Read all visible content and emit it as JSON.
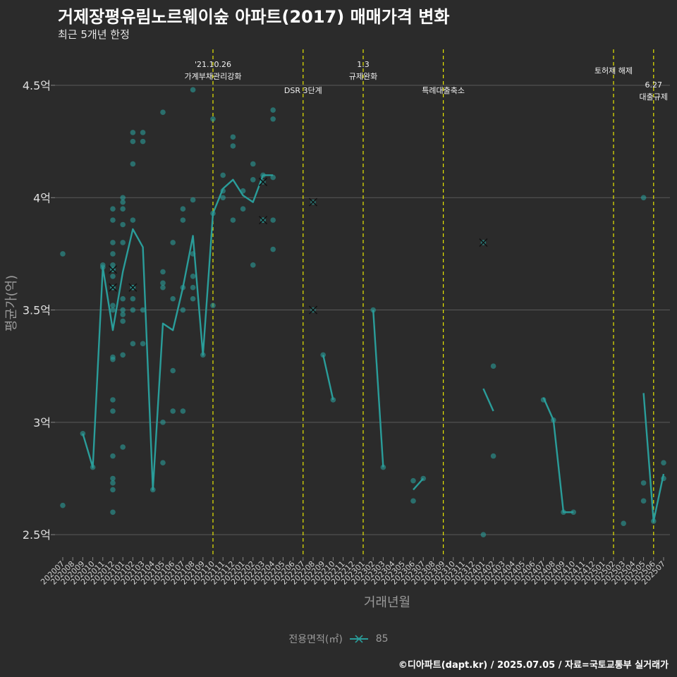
{
  "title": "거제장평유림노르웨이숲 아파트(2017) 매매가격 변화",
  "subtitle": "최근 5개년 한정",
  "caption": "©디아파트(dapt.kr) / 2025.07.05 / 자료=국토교통부 실거래가",
  "colors": {
    "background": "#2b2b2b",
    "series": "#2a9d9a",
    "event_line": "#e8e800",
    "grid": "#5a5a5a"
  },
  "legend": {
    "title": "전용면적(㎡)",
    "entry": "85"
  },
  "chart_data": {
    "type": "line",
    "title": "거제장평유림노르웨이숲 아파트(2017) 매매가격 변화",
    "xlabel": "거래년월",
    "ylabel": "평균가(억)",
    "ylim": [
      2.4,
      4.66
    ],
    "y_ticks": [
      2.5,
      3.0,
      3.5,
      4.0,
      4.5
    ],
    "y_tick_labels": [
      "2.5억",
      "3억",
      "3.5억",
      "4억",
      "4.5억"
    ],
    "categories": [
      "202007",
      "202008",
      "202009",
      "202010",
      "202011",
      "202012",
      "202101",
      "202102",
      "202103",
      "202104",
      "202105",
      "202106",
      "202107",
      "202108",
      "202109",
      "202110",
      "202111",
      "202112",
      "202201",
      "202202",
      "202203",
      "202204",
      "202205",
      "202206",
      "202207",
      "202208",
      "202209",
      "202210",
      "202211",
      "202212",
      "202301",
      "202302",
      "202303",
      "202304",
      "202305",
      "202306",
      "202307",
      "202308",
      "202309",
      "202310",
      "202311",
      "202312",
      "202401",
      "202402",
      "202403",
      "202404",
      "202405",
      "202406",
      "202407",
      "202408",
      "202409",
      "202410",
      "202411",
      "202412",
      "202501",
      "202502",
      "202503",
      "202504",
      "202505",
      "202506",
      "202507"
    ],
    "series": [
      {
        "name": "85",
        "line": [
          [
            [
              2,
              2.95
            ],
            [
              3,
              2.8
            ],
            [
              4,
              3.69
            ],
            [
              5,
              3.41
            ],
            [
              6,
              3.67
            ],
            [
              7,
              3.86
            ],
            [
              8,
              3.78
            ],
            [
              9,
              2.7
            ],
            [
              10,
              3.44
            ],
            [
              11,
              3.41
            ],
            [
              12,
              3.6
            ],
            [
              13,
              3.83
            ],
            [
              14,
              3.3
            ],
            [
              15,
              3.93
            ],
            [
              16,
              4.04
            ],
            [
              17,
              4.08
            ],
            [
              18,
              4.01
            ],
            [
              19,
              3.98
            ],
            [
              20,
              4.1
            ],
            [
              21,
              4.1
            ]
          ],
          [
            [
              26,
              3.3
            ],
            [
              27,
              3.1
            ]
          ],
          [
            [
              31,
              3.5
            ],
            [
              32,
              2.8
            ]
          ],
          [
            [
              35,
              2.7
            ],
            [
              36,
              2.75
            ]
          ],
          [
            [
              42,
              3.15
            ],
            [
              43,
              3.05
            ]
          ],
          [
            [
              48,
              3.11
            ],
            [
              49,
              3.01
            ],
            [
              50,
              2.6
            ],
            [
              51,
              2.6
            ]
          ],
          [
            [
              58,
              3.13
            ],
            [
              59,
              2.56
            ],
            [
              60,
              2.77
            ]
          ]
        ],
        "points": [
          [
            0,
            2.63
          ],
          [
            0,
            3.75
          ],
          [
            2,
            2.95
          ],
          [
            3,
            2.8
          ],
          [
            4,
            3.69
          ],
          [
            4,
            3.7
          ],
          [
            5,
            3.95
          ],
          [
            5,
            3.9
          ],
          [
            5,
            3.8
          ],
          [
            5,
            3.75
          ],
          [
            5,
            3.7
          ],
          [
            5,
            3.65
          ],
          [
            5,
            3.52
          ],
          [
            5,
            3.5
          ],
          [
            5,
            3.29
          ],
          [
            5,
            3.28
          ],
          [
            5,
            3.1
          ],
          [
            5,
            3.05
          ],
          [
            5,
            2.85
          ],
          [
            5,
            2.75
          ],
          [
            5,
            2.73
          ],
          [
            5,
            2.7
          ],
          [
            5,
            2.6
          ],
          [
            5,
            3.6
          ],
          [
            5,
            3.68
          ],
          [
            6,
            4.0
          ],
          [
            6,
            3.98
          ],
          [
            6,
            3.95
          ],
          [
            6,
            3.88
          ],
          [
            6,
            3.8
          ],
          [
            6,
            3.55
          ],
          [
            6,
            3.5
          ],
          [
            6,
            3.45
          ],
          [
            6,
            3.3
          ],
          [
            6,
            2.89
          ],
          [
            6,
            3.48
          ],
          [
            7,
            4.29
          ],
          [
            7,
            4.25
          ],
          [
            7,
            4.15
          ],
          [
            7,
            3.9
          ],
          [
            7,
            3.6
          ],
          [
            7,
            3.55
          ],
          [
            7,
            3.5
          ],
          [
            7,
            3.35
          ],
          [
            8,
            4.29
          ],
          [
            8,
            4.25
          ],
          [
            8,
            3.5
          ],
          [
            8,
            3.35
          ],
          [
            9,
            2.7
          ],
          [
            10,
            4.38
          ],
          [
            10,
            3.67
          ],
          [
            10,
            3.62
          ],
          [
            10,
            3.6
          ],
          [
            10,
            3.0
          ],
          [
            10,
            2.82
          ],
          [
            11,
            3.8
          ],
          [
            11,
            3.55
          ],
          [
            11,
            3.23
          ],
          [
            11,
            3.05
          ],
          [
            12,
            3.95
          ],
          [
            12,
            3.9
          ],
          [
            12,
            3.6
          ],
          [
            12,
            3.5
          ],
          [
            12,
            3.05
          ],
          [
            13,
            4.48
          ],
          [
            13,
            3.99
          ],
          [
            13,
            3.75
          ],
          [
            13,
            3.65
          ],
          [
            13,
            3.6
          ],
          [
            13,
            3.55
          ],
          [
            14,
            3.3
          ],
          [
            15,
            4.35
          ],
          [
            15,
            3.52
          ],
          [
            15,
            3.93
          ],
          [
            16,
            4.1
          ],
          [
            16,
            4.03
          ],
          [
            16,
            4.0
          ],
          [
            17,
            4.27
          ],
          [
            17,
            4.23
          ],
          [
            17,
            3.9
          ],
          [
            18,
            4.03
          ],
          [
            18,
            3.95
          ],
          [
            19,
            4.15
          ],
          [
            19,
            4.08
          ],
          [
            19,
            3.7
          ],
          [
            20,
            4.1
          ],
          [
            20,
            3.9
          ],
          [
            21,
            4.39
          ],
          [
            21,
            4.35
          ],
          [
            21,
            4.09
          ],
          [
            21,
            3.9
          ],
          [
            21,
            3.77
          ],
          [
            26,
            3.3
          ],
          [
            27,
            3.1
          ],
          [
            31,
            3.5
          ],
          [
            32,
            2.8
          ],
          [
            35,
            2.74
          ],
          [
            35,
            2.65
          ],
          [
            36,
            2.75
          ],
          [
            42,
            2.5
          ],
          [
            43,
            3.25
          ],
          [
            43,
            2.85
          ],
          [
            48,
            3.1
          ],
          [
            49,
            3.01
          ],
          [
            50,
            2.6
          ],
          [
            51,
            2.6
          ],
          [
            56,
            2.55
          ],
          [
            58,
            4.0
          ],
          [
            58,
            2.73
          ],
          [
            58,
            2.65
          ],
          [
            59,
            2.56
          ],
          [
            60,
            2.82
          ],
          [
            60,
            2.75
          ]
        ],
        "cancelled": [
          [
            5,
            3.68
          ],
          [
            5,
            3.6
          ],
          [
            7,
            3.6
          ],
          [
            20,
            3.9
          ],
          [
            20,
            4.07
          ],
          [
            25,
            3.98
          ],
          [
            25,
            3.5
          ],
          [
            42,
            3.8
          ]
        ]
      }
    ],
    "events": [
      {
        "index": 15,
        "labels": [
          "'21.10.26",
          "가계부채관리강화"
        ]
      },
      {
        "index": 24,
        "labels": [
          "DSR 3단계"
        ]
      },
      {
        "index": 30,
        "labels": [
          "1.3",
          "규제완화"
        ]
      },
      {
        "index": 38,
        "labels": [
          "특례대출축소"
        ]
      },
      {
        "index": 55,
        "labels": [
          "토허제 해제"
        ]
      },
      {
        "index": 59,
        "labels": [
          "6.27",
          "대출규제"
        ]
      }
    ]
  }
}
